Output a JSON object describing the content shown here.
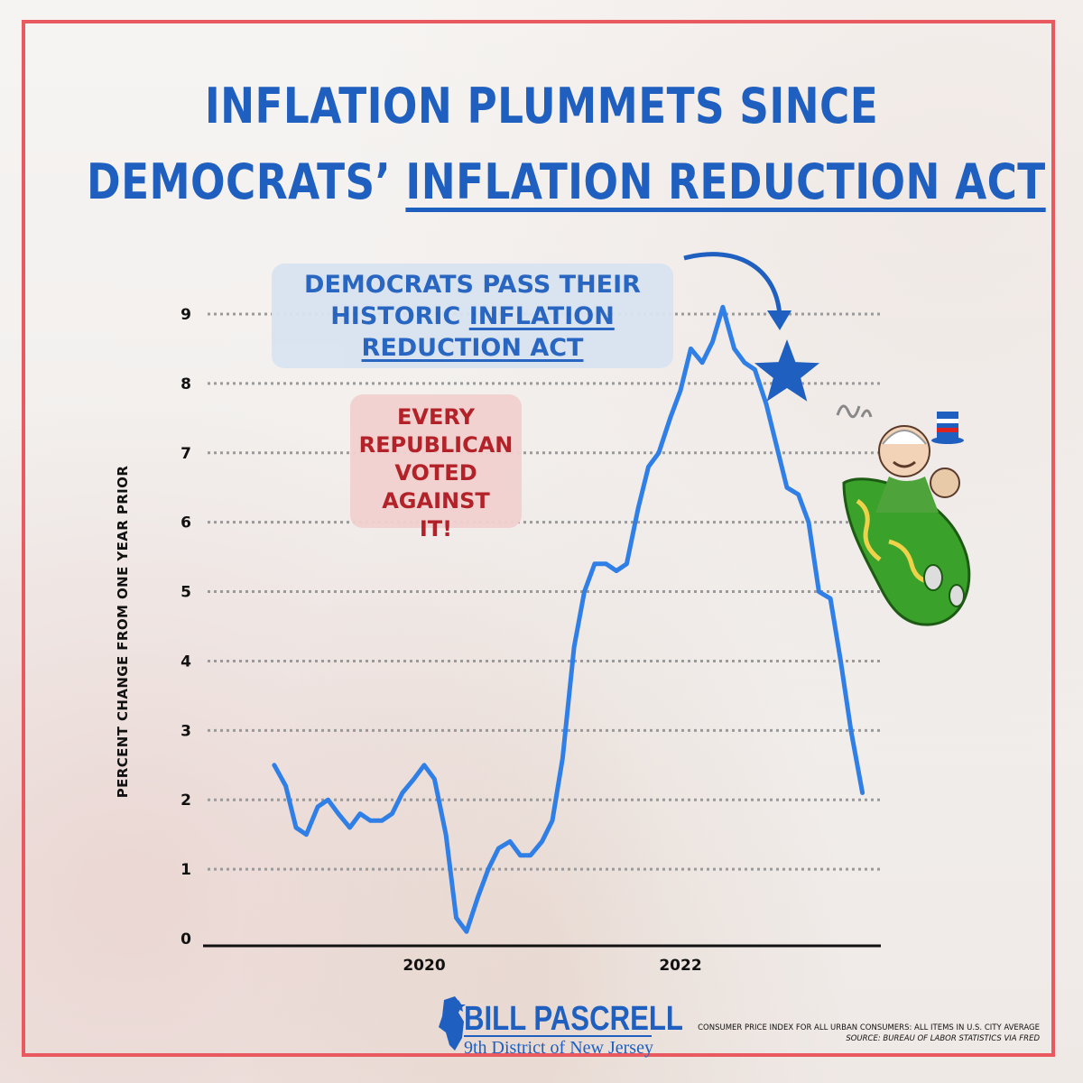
{
  "title": {
    "line1": "INFLATION PLUMMETS SINCE",
    "line2_prefix": "DEMOCRATS’ ",
    "line2_underlined": "INFLATION REDUCTION ACT"
  },
  "callouts": {
    "ira": {
      "line1": "DEMOCRATS PASS THEIR",
      "line2_prefix": "HISTORIC ",
      "line2_underlined": "INFLATION",
      "line3_underlined": "REDUCTION ACT"
    },
    "republican": {
      "line1": "EVERY",
      "line2": "REPUBLICAN",
      "line3": "VOTED AGAINST",
      "line4": "IT!"
    }
  },
  "chart_data": {
    "type": "line",
    "ylabel": "PERCENT CHANGE FROM ONE YEAR PRIOR",
    "xlabel": "",
    "ylim": [
      0,
      9
    ],
    "yticks": [
      "0",
      "1",
      "2",
      "3",
      "4",
      "5",
      "6",
      "7",
      "8",
      "9"
    ],
    "xlim": [
      2018.5,
      2023.5
    ],
    "xticks": [
      {
        "value": 2020,
        "label": "2020"
      },
      {
        "value": 2022,
        "label": "2022"
      }
    ],
    "grid": "horizontal dotted",
    "line_color": "#2f7fe6",
    "series": [
      {
        "x": [
          2018.83,
          2018.92,
          2019.0,
          2019.08,
          2019.17,
          2019.25,
          2019.33,
          2019.42,
          2019.5,
          2019.58,
          2019.67,
          2019.75,
          2019.83,
          2019.92,
          2020.0,
          2020.08,
          2020.17,
          2020.25,
          2020.33,
          2020.42,
          2020.5,
          2020.58,
          2020.67,
          2020.75,
          2020.83,
          2020.92,
          2021.0,
          2021.08,
          2021.17,
          2021.25,
          2021.33,
          2021.42,
          2021.5,
          2021.58,
          2021.67,
          2021.75,
          2021.83,
          2021.92,
          2022.0,
          2022.08,
          2022.17,
          2022.25,
          2022.33,
          2022.42,
          2022.5,
          2022.58,
          2022.67,
          2022.75,
          2022.83,
          2022.92,
          2023.0,
          2023.08,
          2023.17,
          2023.25,
          2023.33,
          2023.42
        ],
        "y": [
          2.5,
          2.2,
          1.6,
          1.5,
          1.9,
          2.0,
          1.8,
          1.6,
          1.8,
          1.7,
          1.7,
          1.8,
          2.1,
          2.3,
          2.5,
          2.3,
          1.5,
          0.3,
          0.1,
          0.6,
          1.0,
          1.3,
          1.4,
          1.2,
          1.2,
          1.4,
          1.7,
          2.6,
          4.2,
          5.0,
          5.4,
          5.4,
          5.3,
          5.4,
          6.2,
          6.8,
          7.0,
          7.5,
          7.9,
          8.5,
          8.3,
          8.6,
          9.1,
          8.5,
          8.3,
          8.2,
          7.7,
          7.1,
          6.5,
          6.4,
          6.0,
          5.0,
          4.9,
          4.0,
          3.0,
          2.1
        ]
      }
    ]
  },
  "branding": {
    "name": "BILL PASCRELL",
    "district": "9th District of New Jersey"
  },
  "source": {
    "line1": "CONSUMER PRICE INDEX FOR ALL URBAN CONSUMERS: ALL ITEMS IN U.S. CITY AVERAGE",
    "line2": "SOURCE: BUREAU OF LABOR STATISTICS VIA FRED"
  },
  "colors": {
    "frame": "#e85a5f",
    "title_blue": "#1f5fbf",
    "callout_red": "#b0181e",
    "star": "#1f5fbf"
  }
}
